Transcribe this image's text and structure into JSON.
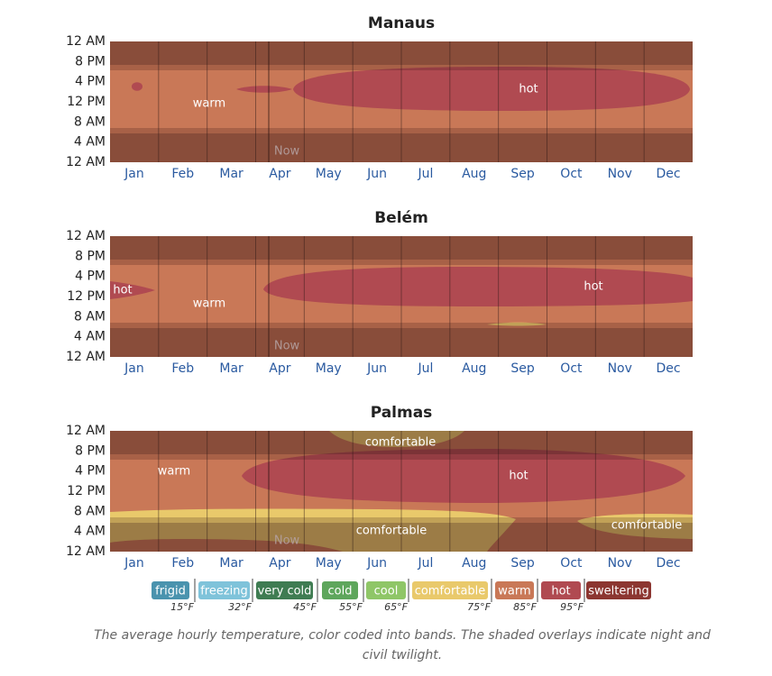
{
  "charts": [
    {
      "title": "Manaus",
      "hours": [
        "12 AM",
        "8 PM",
        "4 PM",
        "12 PM",
        "8 AM",
        "4 AM",
        "12 AM"
      ],
      "months": [
        "Jan",
        "Feb",
        "Mar",
        "Apr",
        "May",
        "Jun",
        "Jul",
        "Aug",
        "Sep",
        "Oct",
        "Nov",
        "Dec"
      ],
      "region_labels": [
        "warm",
        "hot"
      ],
      "now_label": "Now"
    },
    {
      "title": "Belém",
      "hours": [
        "12 AM",
        "8 PM",
        "4 PM",
        "12 PM",
        "8 AM",
        "4 AM",
        "12 AM"
      ],
      "months": [
        "Jan",
        "Feb",
        "Mar",
        "Apr",
        "May",
        "Jun",
        "Jul",
        "Aug",
        "Sep",
        "Oct",
        "Nov",
        "Dec"
      ],
      "region_labels": [
        "hot",
        "warm",
        "hot"
      ],
      "now_label": "Now"
    },
    {
      "title": "Palmas",
      "hours": [
        "12 AM",
        "8 PM",
        "4 PM",
        "12 PM",
        "8 AM",
        "4 AM",
        "12 AM"
      ],
      "months": [
        "Jan",
        "Feb",
        "Mar",
        "Apr",
        "May",
        "Jun",
        "Jul",
        "Aug",
        "Sep",
        "Oct",
        "Nov",
        "Dec"
      ],
      "region_labels": [
        "comfortable",
        "warm",
        "hot",
        "comfortable",
        "comfortable"
      ],
      "now_label": "Now"
    }
  ],
  "legend": [
    {
      "label": "frigid",
      "color": "#4a93ae"
    },
    {
      "label": "freezing",
      "color": "#7fc3da"
    },
    {
      "label": "very cold",
      "color": "#3f7c52"
    },
    {
      "label": "cold",
      "color": "#5ea65c"
    },
    {
      "label": "cool",
      "color": "#8fc667"
    },
    {
      "label": "comfortable",
      "color": "#e9c96b"
    },
    {
      "label": "warm",
      "color": "#c97857"
    },
    {
      "label": "hot",
      "color": "#b04a51"
    },
    {
      "label": "sweltering",
      "color": "#8c3631"
    }
  ],
  "thresholds": [
    "15°F",
    "32°F",
    "45°F",
    "55°F",
    "65°F",
    "75°F",
    "85°F",
    "95°F"
  ],
  "caption": [
    "The average hourly temperature, color coded into bands. The shaded overlays indicate night and",
    "civil twilight."
  ]
}
